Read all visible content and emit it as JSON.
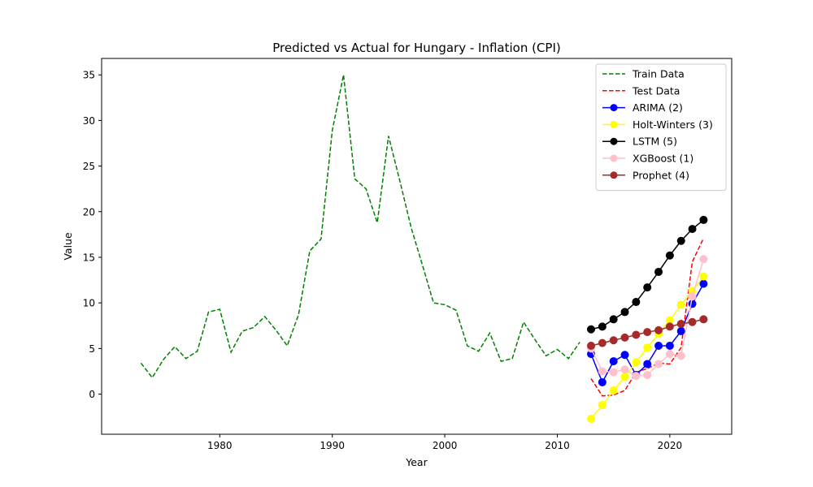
{
  "chart_data": {
    "type": "line",
    "title": "Predicted vs Actual for Hungary - Inflation (CPI)",
    "xlabel": "Year",
    "ylabel": "Value",
    "xlim": [
      1969.5,
      2025.5
    ],
    "ylim": [
      -4.4,
      36.8
    ],
    "xticks": [
      1980,
      1990,
      2000,
      2010,
      2020
    ],
    "yticks": [
      0,
      5,
      10,
      15,
      20,
      25,
      30,
      35
    ],
    "grid": false,
    "legend_position": "top-right",
    "series": [
      {
        "name": "Train Data",
        "color": "#008000",
        "style": "dashed",
        "marker": false,
        "x": [
          1973,
          1974,
          1975,
          1976,
          1977,
          1978,
          1979,
          1980,
          1981,
          1982,
          1983,
          1984,
          1985,
          1986,
          1987,
          1988,
          1989,
          1990,
          1991,
          1992,
          1993,
          1994,
          1995,
          1996,
          1997,
          1998,
          1999,
          2000,
          2001,
          2002,
          2003,
          2004,
          2005,
          2006,
          2007,
          2008,
          2009,
          2010,
          2011,
          2012
        ],
        "values": [
          3.4,
          1.8,
          3.8,
          5.2,
          3.9,
          4.7,
          9.0,
          9.3,
          4.6,
          6.9,
          7.3,
          8.5,
          7.0,
          5.3,
          8.7,
          15.7,
          17.0,
          28.9,
          35.0,
          23.6,
          22.5,
          18.8,
          28.3,
          23.4,
          18.3,
          14.2,
          10.0,
          9.8,
          9.2,
          5.3,
          4.7,
          6.7,
          3.6,
          3.9,
          7.9,
          6.0,
          4.2,
          4.9,
          3.9,
          5.7
        ]
      },
      {
        "name": "Test Data",
        "color": "#ff0000",
        "style": "dashed",
        "marker": false,
        "x": [
          2013,
          2014,
          2015,
          2016,
          2017,
          2018,
          2019,
          2020,
          2021,
          2022,
          2023
        ],
        "values": [
          1.7,
          -0.2,
          -0.1,
          0.4,
          2.4,
          2.8,
          3.4,
          3.3,
          5.1,
          14.5,
          17.1
        ]
      },
      {
        "name": "ARIMA (2)",
        "color": "#0000ff",
        "style": "solid",
        "marker": true,
        "x": [
          2013,
          2014,
          2015,
          2016,
          2017,
          2018,
          2019,
          2020,
          2021,
          2022,
          2023
        ],
        "values": [
          4.4,
          1.3,
          3.6,
          4.3,
          2.1,
          3.3,
          5.3,
          5.3,
          6.9,
          9.9,
          12.1
        ]
      },
      {
        "name": "Holt-Winters (3)",
        "color": "#ffff00",
        "style": "solid",
        "marker": true,
        "x": [
          2013,
          2014,
          2015,
          2016,
          2017,
          2018,
          2019,
          2020,
          2021,
          2022,
          2023
        ],
        "values": [
          -2.7,
          -1.2,
          0.4,
          1.9,
          3.5,
          5.1,
          6.6,
          8.1,
          9.8,
          11.3,
          12.9
        ]
      },
      {
        "name": "LSTM (5)",
        "color": "#000000",
        "style": "solid",
        "marker": true,
        "x": [
          2013,
          2014,
          2015,
          2016,
          2017,
          2018,
          2019,
          2020,
          2021,
          2022,
          2023
        ],
        "values": [
          7.1,
          7.4,
          8.2,
          9.0,
          10.1,
          11.7,
          13.4,
          15.2,
          16.8,
          18.1,
          19.1
        ]
      },
      {
        "name": "XGBoost (1)",
        "color": "#ffc0cb",
        "style": "solid",
        "marker": true,
        "x": [
          2013,
          2014,
          2015,
          2016,
          2017,
          2018,
          2019,
          2020,
          2021,
          2022,
          2023
        ],
        "values": [
          5.0,
          2.5,
          2.4,
          2.7,
          2.0,
          2.1,
          3.3,
          4.4,
          4.2,
          10.7,
          14.8
        ]
      },
      {
        "name": "Prophet (4)",
        "color": "#a52a2a",
        "style": "solid",
        "marker": true,
        "x": [
          2013,
          2014,
          2015,
          2016,
          2017,
          2018,
          2019,
          2020,
          2021,
          2022,
          2023
        ],
        "values": [
          5.3,
          5.6,
          5.9,
          6.2,
          6.5,
          6.8,
          7.0,
          7.4,
          7.7,
          7.9,
          8.2
        ]
      }
    ]
  }
}
